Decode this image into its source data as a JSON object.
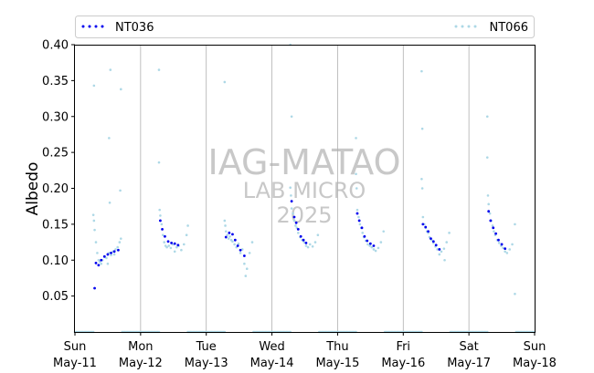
{
  "chart_data": {
    "type": "scatter",
    "ylabel": "Albedo",
    "ylim": [
      0.0,
      0.4
    ],
    "yticks": [
      "0.05",
      "0.10",
      "0.15",
      "0.20",
      "0.25",
      "0.30",
      "0.35",
      "0.40"
    ],
    "xlim_days": [
      0,
      7
    ],
    "xticks": [
      {
        "day": 0,
        "line1": "Sun",
        "line2": "May-11"
      },
      {
        "day": 1,
        "line1": "Mon",
        "line2": "May-12"
      },
      {
        "day": 2,
        "line1": "Tue",
        "line2": "May-13"
      },
      {
        "day": 3,
        "line1": "Wed",
        "line2": "May-14"
      },
      {
        "day": 4,
        "line1": "Thu",
        "line2": "May-15"
      },
      {
        "day": 5,
        "line1": "Fri",
        "line2": "May-16"
      },
      {
        "day": 6,
        "line1": "Sat",
        "line2": "May-17"
      },
      {
        "day": 7,
        "line1": "Sun",
        "line2": "May-18"
      }
    ],
    "grid": "vertical",
    "legend_position": "top",
    "watermark": {
      "line1": "IAG-MATAO",
      "line2": "LAB MICRO",
      "line3": "2025"
    },
    "series": [
      {
        "name": "NT036",
        "color": "#0000ee",
        "daily_profiles": [
          {
            "day": 0,
            "x": [
              0.3,
              0.32,
              0.36,
              0.4,
              0.45,
              0.5,
              0.55,
              0.6,
              0.66
            ],
            "y": [
              0.061,
              0.096,
              0.093,
              0.1,
              0.105,
              0.108,
              0.11,
              0.112,
              0.114
            ]
          },
          {
            "day": 1,
            "x": [
              0.3,
              0.33,
              0.37,
              0.42,
              0.47,
              0.52,
              0.57
            ],
            "y": [
              0.155,
              0.143,
              0.133,
              0.126,
              0.124,
              0.123,
              0.121
            ]
          },
          {
            "day": 2,
            "x": [
              0.3,
              0.35,
              0.4,
              0.44,
              0.48,
              0.52,
              0.58
            ],
            "y": [
              0.132,
              0.138,
              0.136,
              0.128,
              0.12,
              0.114,
              0.106
            ]
          },
          {
            "day": 3,
            "x": [
              0.3,
              0.34,
              0.37,
              0.4,
              0.44,
              0.48,
              0.52
            ],
            "y": [
              0.182,
              0.16,
              0.152,
              0.143,
              0.133,
              0.128,
              0.124
            ]
          },
          {
            "day": 4,
            "x": [
              0.3,
              0.33,
              0.37,
              0.41,
              0.45,
              0.5,
              0.55
            ],
            "y": [
              0.165,
              0.155,
              0.145,
              0.133,
              0.127,
              0.123,
              0.12
            ]
          },
          {
            "day": 5,
            "x": [
              0.3,
              0.34,
              0.38,
              0.42,
              0.46,
              0.5,
              0.55
            ],
            "y": [
              0.15,
              0.146,
              0.14,
              0.13,
              0.126,
              0.121,
              0.115
            ]
          },
          {
            "day": 6,
            "x": [
              0.3,
              0.33,
              0.37,
              0.41,
              0.45,
              0.5,
              0.55
            ],
            "y": [
              0.168,
              0.155,
              0.145,
              0.137,
              0.128,
              0.122,
              0.116
            ]
          }
        ]
      },
      {
        "name": "NT066",
        "color": "#add8e6",
        "daily_profiles": [
          {
            "day": 0,
            "x": [
              0.28,
              0.29,
              0.3,
              0.32,
              0.34,
              0.36,
              0.38,
              0.4,
              0.42,
              0.45,
              0.48,
              0.5,
              0.52,
              0.55,
              0.58,
              0.6,
              0.62,
              0.65,
              0.68,
              0.7
            ],
            "y": [
              0.163,
              0.155,
              0.142,
              0.125,
              0.11,
              0.1,
              0.098,
              0.095,
              0.1,
              0.105,
              0.103,
              0.095,
              0.11,
              0.107,
              0.112,
              0.108,
              0.115,
              0.118,
              0.125,
              0.13
            ]
          },
          {
            "day": 1,
            "x": [
              0.28,
              0.29,
              0.3,
              0.32,
              0.34,
              0.36,
              0.38,
              0.4,
              0.43,
              0.46,
              0.49,
              0.52,
              0.55,
              0.58,
              0.62,
              0.66,
              0.7,
              0.72
            ],
            "y": [
              0.236,
              0.17,
              0.162,
              0.15,
              0.135,
              0.125,
              0.12,
              0.118,
              0.12,
              0.117,
              0.122,
              0.112,
              0.118,
              0.12,
              0.114,
              0.122,
              0.135,
              0.148
            ]
          },
          {
            "day": 2,
            "x": [
              0.28,
              0.29,
              0.3,
              0.32,
              0.34,
              0.36,
              0.38,
              0.4,
              0.43,
              0.46,
              0.49,
              0.52,
              0.55,
              0.58,
              0.62,
              0.66,
              0.7
            ],
            "y": [
              0.155,
              0.148,
              0.14,
              0.135,
              0.13,
              0.133,
              0.128,
              0.126,
              0.122,
              0.118,
              0.123,
              0.11,
              0.115,
              0.095,
              0.088,
              0.11,
              0.125
            ]
          },
          {
            "day": 3,
            "x": [
              0.28,
              0.29,
              0.3,
              0.32,
              0.34,
              0.36,
              0.38,
              0.4,
              0.43,
              0.46,
              0.49,
              0.52,
              0.55,
              0.58,
              0.62,
              0.66,
              0.7
            ],
            "y": [
              0.201,
              0.19,
              0.172,
              0.165,
              0.155,
              0.148,
              0.145,
              0.138,
              0.132,
              0.128,
              0.125,
              0.12,
              0.118,
              0.122,
              0.119,
              0.125,
              0.135
            ]
          },
          {
            "day": 4,
            "x": [
              0.28,
              0.29,
              0.3,
              0.32,
              0.34,
              0.36,
              0.38,
              0.4,
              0.43,
              0.46,
              0.49,
              0.52,
              0.55,
              0.58,
              0.62,
              0.66,
              0.7
            ],
            "y": [
              0.22,
              0.2,
              0.17,
              0.16,
              0.15,
              0.145,
              0.138,
              0.132,
              0.127,
              0.122,
              0.12,
              0.118,
              0.115,
              0.113,
              0.117,
              0.125,
              0.14
            ]
          },
          {
            "day": 5,
            "x": [
              0.28,
              0.29,
              0.3,
              0.32,
              0.34,
              0.36,
              0.38,
              0.4,
              0.43,
              0.46,
              0.49,
              0.52,
              0.55,
              0.58,
              0.62,
              0.66,
              0.7
            ],
            "y": [
              0.213,
              0.2,
              0.16,
              0.15,
              0.145,
              0.14,
              0.138,
              0.132,
              0.128,
              0.124,
              0.119,
              0.115,
              0.108,
              0.112,
              0.116,
              0.125,
              0.138
            ]
          },
          {
            "day": 6,
            "x": [
              0.28,
              0.29,
              0.3,
              0.32,
              0.34,
              0.36,
              0.38,
              0.4,
              0.43,
              0.46,
              0.49,
              0.52,
              0.55,
              0.58,
              0.62,
              0.66,
              0.7
            ],
            "y": [
              0.243,
              0.19,
              0.178,
              0.165,
              0.155,
              0.148,
              0.14,
              0.135,
              0.128,
              0.124,
              0.12,
              0.117,
              0.112,
              0.11,
              0.115,
              0.122,
              0.15
            ]
          }
        ],
        "outliers": [
          {
            "x": 0.29,
            "y": 0.343
          },
          {
            "x": 0.54,
            "y": 0.365
          },
          {
            "x": 0.52,
            "y": 0.27
          },
          {
            "x": 0.7,
            "y": 0.338
          },
          {
            "x": 0.53,
            "y": 0.18
          },
          {
            "x": 0.69,
            "y": 0.197
          },
          {
            "x": 1.28,
            "y": 0.365
          },
          {
            "x": 2.28,
            "y": 0.348
          },
          {
            "x": 3.28,
            "y": 0.4
          },
          {
            "x": 3.3,
            "y": 0.3
          },
          {
            "x": 4.28,
            "y": 0.27
          },
          {
            "x": 5.28,
            "y": 0.363
          },
          {
            "x": 5.29,
            "y": 0.283
          },
          {
            "x": 6.28,
            "y": 0.3
          },
          {
            "x": 6.7,
            "y": 0.053
          },
          {
            "x": 2.6,
            "y": 0.078
          },
          {
            "x": 5.63,
            "y": 0.1
          }
        ],
        "night_baseline": {
          "y": 0.0,
          "segments": [
            [
              0.0,
              0.28
            ],
            [
              0.72,
              1.28
            ],
            [
              1.72,
              2.28
            ],
            [
              2.72,
              3.28
            ],
            [
              3.72,
              4.28
            ],
            [
              4.72,
              5.28
            ],
            [
              5.72,
              6.28
            ],
            [
              6.72,
              7.0
            ]
          ]
        }
      }
    ]
  }
}
